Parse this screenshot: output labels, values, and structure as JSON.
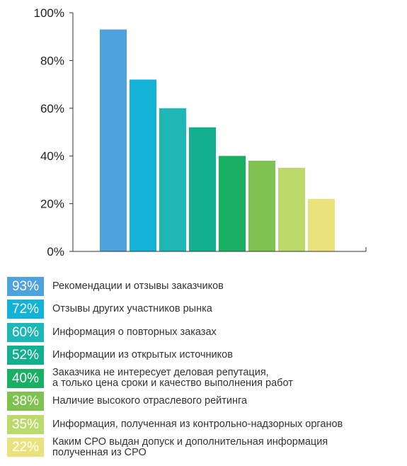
{
  "chart_data": {
    "type": "bar",
    "ylim": [
      0,
      100
    ],
    "yticks": [
      "0%",
      "20%",
      "40%",
      "60%",
      "80%",
      "100%"
    ],
    "grid": false,
    "values": [
      93,
      72,
      60,
      52,
      40,
      38,
      35,
      22
    ],
    "colors": [
      "#4ea2de",
      "#12b3d6",
      "#1db8b6",
      "#13b08f",
      "#1ab064",
      "#7fc24f",
      "#bcd96c",
      "#ebe27d"
    ],
    "legend": [
      {
        "value": "93%",
        "text": "Рекомендации и отзывы заказчиков"
      },
      {
        "value": "72%",
        "text": "Отзывы других участников рынка"
      },
      {
        "value": "60%",
        "text": "Информация о повторных заказах"
      },
      {
        "value": "52%",
        "text": "Информации из открытых источников"
      },
      {
        "value": "40%",
        "text": "Заказчика не интересует деловая репутация,\nа только цена сроки и качество выполнения работ"
      },
      {
        "value": "38%",
        "text": "Наличие высокого отраслевого рейтинга"
      },
      {
        "value": "35%",
        "text": "Информация, полученная из контрольно-надзорных органов"
      },
      {
        "value": "22%",
        "text": "Каким СРО выдан допуск и дополнительная информация\nполученная из СРО"
      }
    ]
  }
}
